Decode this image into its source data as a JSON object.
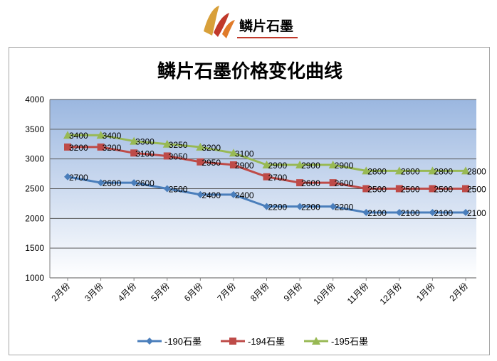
{
  "logo": {
    "text": "鳞片石墨"
  },
  "chart_data": {
    "type": "line",
    "title": "鳞片石墨价格变化曲线",
    "categories": [
      "2月份",
      "3月份",
      "4月份",
      "5月份",
      "6月份",
      "7月份",
      "8月份",
      "9月份",
      "10月份",
      "11月份",
      "12月份",
      "1月份",
      "2月份"
    ],
    "ylim": [
      1000,
      4000
    ],
    "yticks": [
      1000,
      1500,
      2000,
      2500,
      3000,
      3500,
      4000
    ],
    "grid": true,
    "legend_position": "bottom",
    "series": [
      {
        "name": "-190石墨",
        "color": "#4a7ebb",
        "marker": "diamond",
        "values": [
          2700,
          2600,
          2600,
          2500,
          2400,
          2400,
          2200,
          2200,
          2200,
          2100,
          2100,
          2100,
          2100
        ],
        "labels": [
          "2700",
          "2600",
          "2600",
          "2500",
          "2400",
          "2400",
          "2200",
          "2200",
          "2200",
          "2100",
          "2100",
          "2100",
          "2100"
        ]
      },
      {
        "name": "-194石墨",
        "color": "#be4b48",
        "marker": "square",
        "values": [
          3200,
          3200,
          3100,
          3050,
          2950,
          2900,
          2700,
          2600,
          2600,
          2500,
          2500,
          2500,
          2500
        ],
        "labels": [
          "3200",
          "3200",
          "3100",
          "3050",
          "2950",
          "2900",
          "2700",
          "2600",
          "2600",
          "2500",
          "2500",
          "2500",
          "2500"
        ]
      },
      {
        "name": "-195石墨",
        "color": "#98b954",
        "marker": "triangle",
        "values": [
          3400,
          3400,
          3300,
          3250,
          3200,
          3100,
          2900,
          2900,
          2900,
          2800,
          2800,
          2800,
          2800
        ],
        "labels": [
          "3400",
          "3400",
          "3300",
          "3250",
          "3200",
          "3100",
          "2900",
          "2900",
          "2900",
          "2800",
          "2800",
          "2800",
          "2800"
        ]
      }
    ]
  }
}
